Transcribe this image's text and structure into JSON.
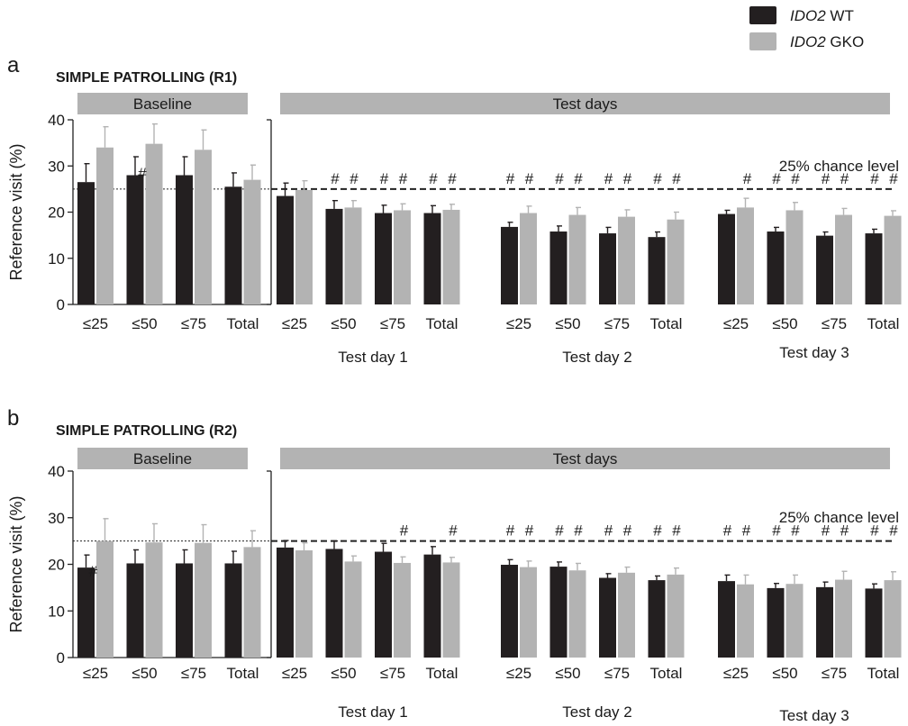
{
  "legend": [
    {
      "italic": "IDO2",
      "rest": " WT",
      "color": "#231f20"
    },
    {
      "italic": "IDO2",
      "rest": " GKO",
      "color": "#b3b3b3"
    }
  ],
  "colors": {
    "wt": "#231f20",
    "gko": "#b3b3b3",
    "header": "#b3b3b3"
  },
  "chart_data": [
    {
      "type": "bar",
      "letter": "a",
      "title": "SIMPLE PATROLLING (R1)",
      "ylabel": "Reference visit (%)",
      "ylim": [
        0,
        40
      ],
      "yticks": [
        "0",
        "10",
        "20",
        "30",
        "40"
      ],
      "chance_value": 25,
      "chance_label": "25% chance level",
      "series": [
        {
          "name": "IDO2 WT"
        },
        {
          "name": "IDO2 GKO"
        }
      ],
      "groups": [
        {
          "header": "Baseline",
          "day_label": "",
          "section": "baseline",
          "categories": [
            "≤25",
            "≤50",
            "≤75",
            "Total"
          ],
          "wt": [
            26.5,
            28,
            28,
            25.5
          ],
          "wt_err": [
            4,
            4,
            4,
            3
          ],
          "gko": [
            34,
            34.8,
            33.5,
            27
          ],
          "gko_err": [
            4.5,
            4.3,
            4.3,
            3.2
          ],
          "marks": [
            "",
            "#",
            "",
            ""
          ]
        },
        {
          "header": "Test days",
          "day_label": "Test day 1",
          "section": "test",
          "categories": [
            "≤25",
            "≤50",
            "≤75",
            "Total"
          ],
          "wt": [
            23.5,
            20.7,
            19.8,
            19.8
          ],
          "wt_err": [
            2.8,
            1.8,
            1.7,
            1.6
          ],
          "gko": [
            24.8,
            21,
            20.4,
            20.5
          ],
          "gko_err": [
            2,
            1.5,
            1.4,
            1.2
          ],
          "marks": [
            "",
            "##",
            "##",
            "##"
          ]
        },
        {
          "header": "",
          "day_label": "Test day 2",
          "section": "test",
          "categories": [
            "≤25",
            "≤50",
            "≤75",
            "Total"
          ],
          "wt": [
            16.8,
            15.8,
            15.4,
            14.6
          ],
          "wt_err": [
            1,
            1.2,
            1.3,
            1.1
          ],
          "gko": [
            19.8,
            19.4,
            19,
            18.4
          ],
          "gko_err": [
            1.5,
            1.6,
            1.5,
            1.6
          ],
          "marks": [
            "##",
            "##",
            "##",
            "##"
          ]
        },
        {
          "header": "",
          "day_label": "Test day 3",
          "section": "test",
          "categories": [
            "≤25",
            "≤50",
            "≤75",
            "Total"
          ],
          "wt": [
            19.6,
            15.8,
            14.9,
            15.4
          ],
          "wt_err": [
            0.8,
            0.9,
            0.8,
            0.9
          ],
          "gko": [
            21,
            20.4,
            19.4,
            19.2
          ],
          "gko_err": [
            2,
            1.7,
            1.4,
            1.1
          ],
          "marks": [
            "#",
            "##",
            "##",
            "##"
          ]
        }
      ]
    },
    {
      "type": "bar",
      "letter": "b",
      "title": "SIMPLE PATROLLING (R2)",
      "ylabel": "Reference visit (%)",
      "ylim": [
        0,
        40
      ],
      "yticks": [
        "0",
        "10",
        "20",
        "30",
        "40"
      ],
      "chance_value": 25,
      "chance_label": "25% chance level",
      "series": [
        {
          "name": "IDO2 WT"
        },
        {
          "name": "IDO2 GKO"
        }
      ],
      "groups": [
        {
          "header": "Baseline",
          "day_label": "",
          "section": "baseline",
          "categories": [
            "≤25",
            "≤50",
            "≤75",
            "Total"
          ],
          "wt": [
            19.3,
            20.2,
            20.2,
            20.2
          ],
          "wt_err": [
            2.7,
            2.9,
            2.9,
            2.6
          ],
          "gko": [
            25,
            24.7,
            24.6,
            23.7
          ],
          "gko_err": [
            4.8,
            4,
            3.9,
            3.5
          ],
          "marks": [
            "#",
            "",
            "",
            ""
          ]
        },
        {
          "header": "Test days",
          "day_label": "Test day 1",
          "section": "test",
          "categories": [
            "≤25",
            "≤50",
            "≤75",
            "Total"
          ],
          "wt": [
            23.6,
            23.3,
            22.7,
            22.1
          ],
          "wt_err": [
            1.5,
            1.7,
            1.8,
            1.7
          ],
          "gko": [
            23,
            20.6,
            20.3,
            20.4
          ],
          "gko_err": [
            1.6,
            1.2,
            1.3,
            1.1
          ],
          "marks": [
            "",
            "",
            "#",
            "#"
          ]
        },
        {
          "header": "",
          "day_label": "Test day 2",
          "section": "test",
          "categories": [
            "≤25",
            "≤50",
            "≤75",
            "Total"
          ],
          "wt": [
            19.9,
            19.5,
            17.1,
            16.6
          ],
          "wt_err": [
            1.1,
            1,
            0.9,
            0.9
          ],
          "gko": [
            19.4,
            18.7,
            18.2,
            17.8
          ],
          "gko_err": [
            1.3,
            1.5,
            1.2,
            1.4
          ],
          "marks": [
            "##",
            "##",
            "##",
            "##"
          ]
        },
        {
          "header": "",
          "day_label": "Test day 3",
          "section": "test",
          "categories": [
            "≤25",
            "≤50",
            "≤75",
            "Total"
          ],
          "wt": [
            16.4,
            14.9,
            15.1,
            14.8
          ],
          "wt_err": [
            1.3,
            1,
            1.1,
            1
          ],
          "gko": [
            15.7,
            15.8,
            16.7,
            16.6
          ],
          "gko_err": [
            2,
            1.9,
            1.8,
            1.8
          ],
          "marks": [
            "##",
            "##",
            "##",
            "##"
          ]
        }
      ]
    }
  ]
}
